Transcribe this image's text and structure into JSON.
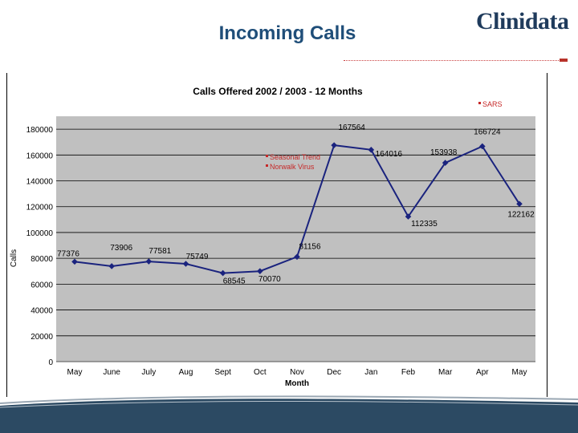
{
  "slide": {
    "title": "Incoming Calls",
    "logo_text": "Clinidata"
  },
  "colors": {
    "title": "#1f4e79",
    "series_line": "#1a237e",
    "plot_background": "#c0c0c0",
    "legend_marker": "#c62828",
    "legend_text": "#c62828"
  },
  "chart_data": {
    "type": "line",
    "title": "Calls Offered 2002 / 2003 - 12 Months",
    "xlabel": "Month",
    "ylabel": "Calls",
    "categories": [
      "May",
      "June",
      "July",
      "Aug",
      "Sept",
      "Oct",
      "Nov",
      "Dec",
      "Jan",
      "Feb",
      "Mar",
      "Apr",
      "May"
    ],
    "series": [
      {
        "values": [
          77376,
          73906,
          77581,
          75749,
          68545,
          70070,
          81156,
          167564,
          164016,
          112335,
          153938,
          166724,
          122162
        ]
      }
    ],
    "data_labels": [
      "77376",
      "73906",
      "77581",
      "75749",
      "68545",
      "70070",
      "81156",
      "167564",
      "164016",
      "112335",
      "153938",
      "166724",
      "122162"
    ],
    "y_ticks": [
      "0",
      "20000",
      "40000",
      "60000",
      "80000",
      "100000",
      "120000",
      "140000",
      "160000",
      "180000"
    ],
    "ylim": [
      0,
      190000
    ],
    "grid": "horizontal",
    "legend": [
      "Seasonal Trend",
      "Norwalk Virus"
    ],
    "legend_placement": "top-center",
    "annotations": [
      {
        "text": "SARS",
        "placement": "top-right"
      }
    ]
  }
}
